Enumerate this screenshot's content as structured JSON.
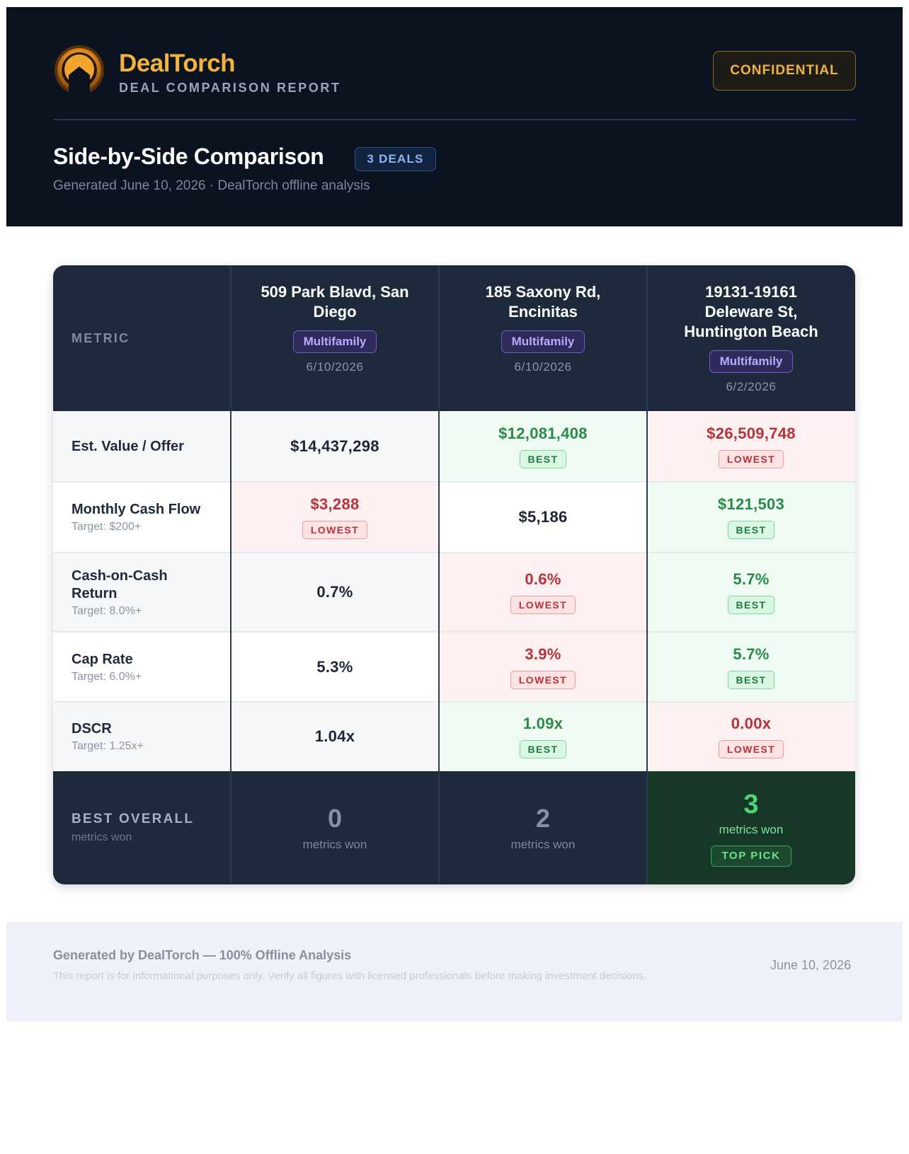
{
  "header": {
    "brand_name": "DealTorch",
    "brand_subtitle": "DEAL COMPARISON REPORT",
    "badge": "CONFIDENTIAL",
    "title": "Side-by-Side Comparison",
    "deals_pill": "3 DEALS",
    "generated": "Generated June 10, 2026 · DealTorch offline analysis"
  },
  "table": {
    "metric_header": "METRIC",
    "deals": [
      {
        "name": "509 Park Blavd, San Diego",
        "type": "Multifamily",
        "date": "6/10/2026"
      },
      {
        "name": "185 Saxony Rd, Encinitas",
        "type": "Multifamily",
        "date": "6/10/2026"
      },
      {
        "name": "19131-19161 Deleware St, Huntington Beach",
        "type": "Multifamily",
        "date": "6/2/2026"
      }
    ],
    "rows": [
      {
        "label": "Est. Value / Offer",
        "target": "",
        "cells": [
          {
            "value": "$14,437,298",
            "tag": ""
          },
          {
            "value": "$12,081,408",
            "tag": "BEST"
          },
          {
            "value": "$26,509,748",
            "tag": "LOWEST"
          }
        ]
      },
      {
        "label": "Monthly Cash Flow",
        "target": "Target: $200+",
        "cells": [
          {
            "value": "$3,288",
            "tag": "LOWEST"
          },
          {
            "value": "$5,186",
            "tag": ""
          },
          {
            "value": "$121,503",
            "tag": "BEST"
          }
        ]
      },
      {
        "label": "Cash-on-Cash Return",
        "target": "Target: 8.0%+",
        "cells": [
          {
            "value": "0.7%",
            "tag": ""
          },
          {
            "value": "0.6%",
            "tag": "LOWEST"
          },
          {
            "value": "5.7%",
            "tag": "BEST"
          }
        ]
      },
      {
        "label": "Cap Rate",
        "target": "Target: 6.0%+",
        "cells": [
          {
            "value": "5.3%",
            "tag": ""
          },
          {
            "value": "3.9%",
            "tag": "LOWEST"
          },
          {
            "value": "5.7%",
            "tag": "BEST"
          }
        ]
      },
      {
        "label": "DSCR",
        "target": "Target: 1.25x+",
        "cells": [
          {
            "value": "1.04x",
            "tag": ""
          },
          {
            "value": "1.09x",
            "tag": "BEST"
          },
          {
            "value": "0.00x",
            "tag": "LOWEST"
          }
        ]
      }
    ],
    "best_overall": {
      "label": "BEST OVERALL",
      "sublabel": "metrics won",
      "counts": [
        {
          "value": "0",
          "label": "metrics won"
        },
        {
          "value": "2",
          "label": "metrics won"
        },
        {
          "value": "3",
          "label": "metrics won",
          "tag": "TOP PICK"
        }
      ]
    }
  },
  "footer": {
    "title": "Generated by DealTorch — 100% Offline Analysis",
    "note": "This report is for informational purposes only. Verify all figures with licensed professionals before making investment decisions.",
    "date": "June 10, 2026"
  },
  "colors": {
    "header_bg": "#0b1220",
    "accent": "#f2b33d",
    "best": "#2a8a4a",
    "lowest": "#b8323a"
  },
  "icons": {
    "logo": "torch-house-logo-icon"
  }
}
